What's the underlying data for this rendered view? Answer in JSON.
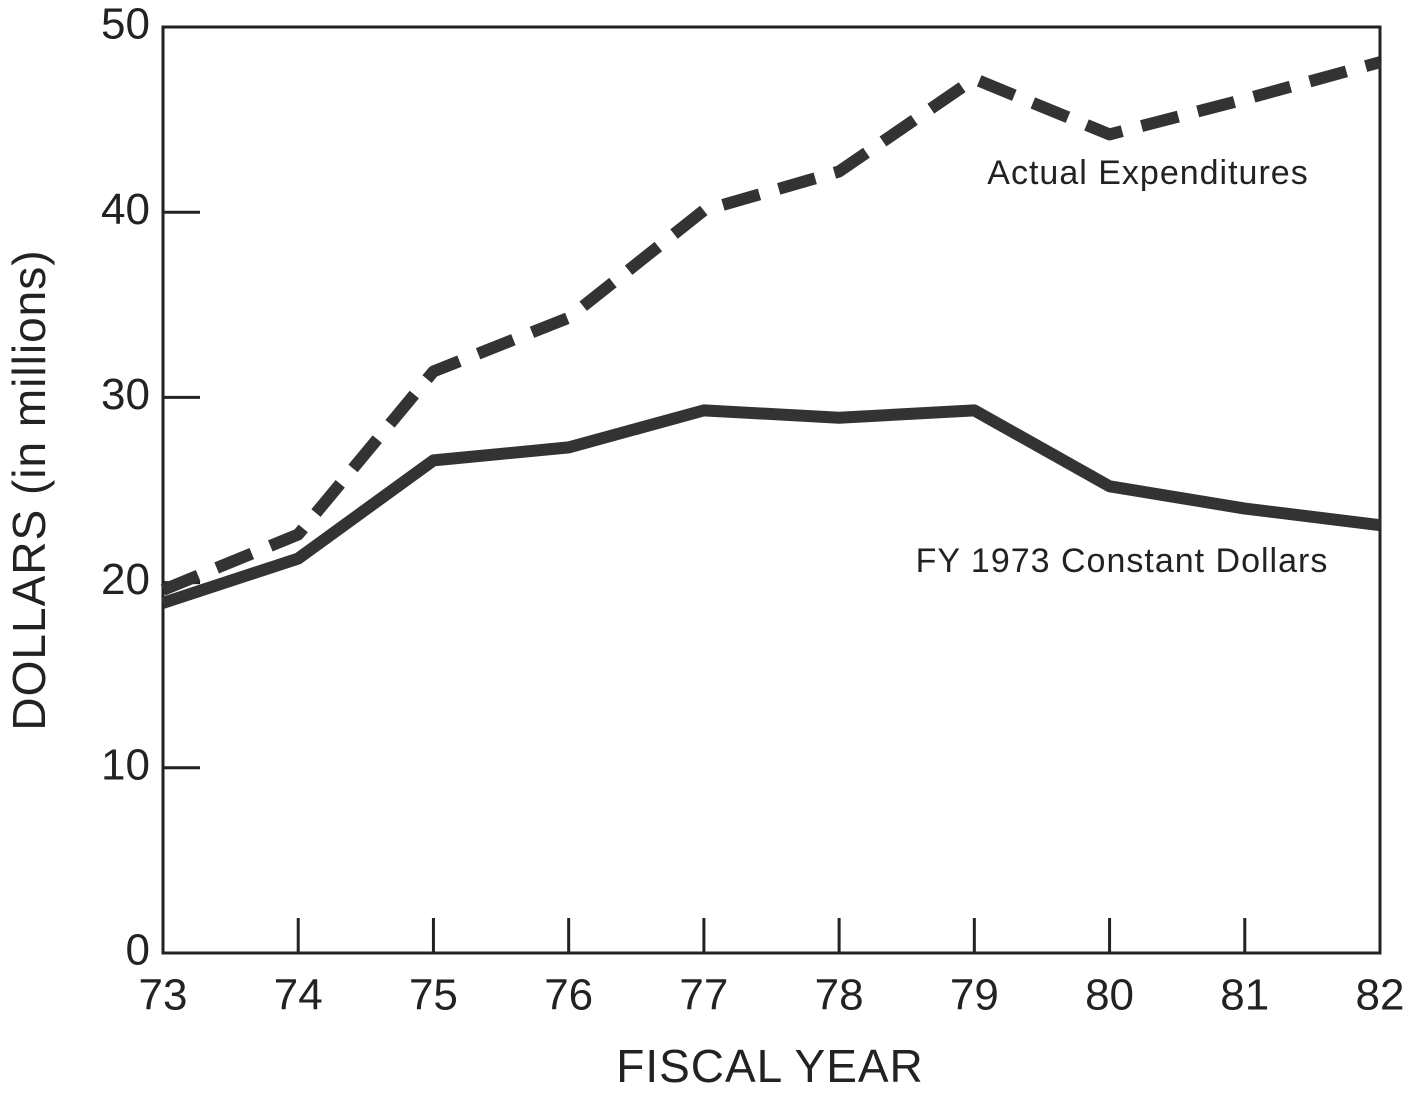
{
  "chart_data": {
    "type": "line",
    "x": [
      73,
      74,
      75,
      76,
      77,
      78,
      79,
      80,
      81,
      82
    ],
    "series": [
      {
        "name": "Actual Expenditures",
        "color": "#333333",
        "dash": true,
        "values": [
          19.6,
          22.6,
          31.4,
          34.3,
          40.1,
          42.2,
          47.2,
          44.2,
          46.1,
          48.1
        ]
      },
      {
        "name": "FY 1973 Constant Dollars",
        "color": "#333333",
        "dash": false,
        "values": [
          18.9,
          21.3,
          26.6,
          27.3,
          29.3,
          28.9,
          29.3,
          25.2,
          24.0,
          23.1
        ]
      }
    ],
    "xlabel": "FISCAL YEAR",
    "ylabel": "DOLLARS (in millions)",
    "xlim": [
      73,
      82
    ],
    "xticks": [
      73,
      74,
      75,
      76,
      77,
      78,
      79,
      80,
      81,
      82
    ],
    "ylim": [
      0,
      50
    ],
    "yticks": [
      0,
      10,
      20,
      30,
      40,
      50
    ],
    "grid": false
  }
}
